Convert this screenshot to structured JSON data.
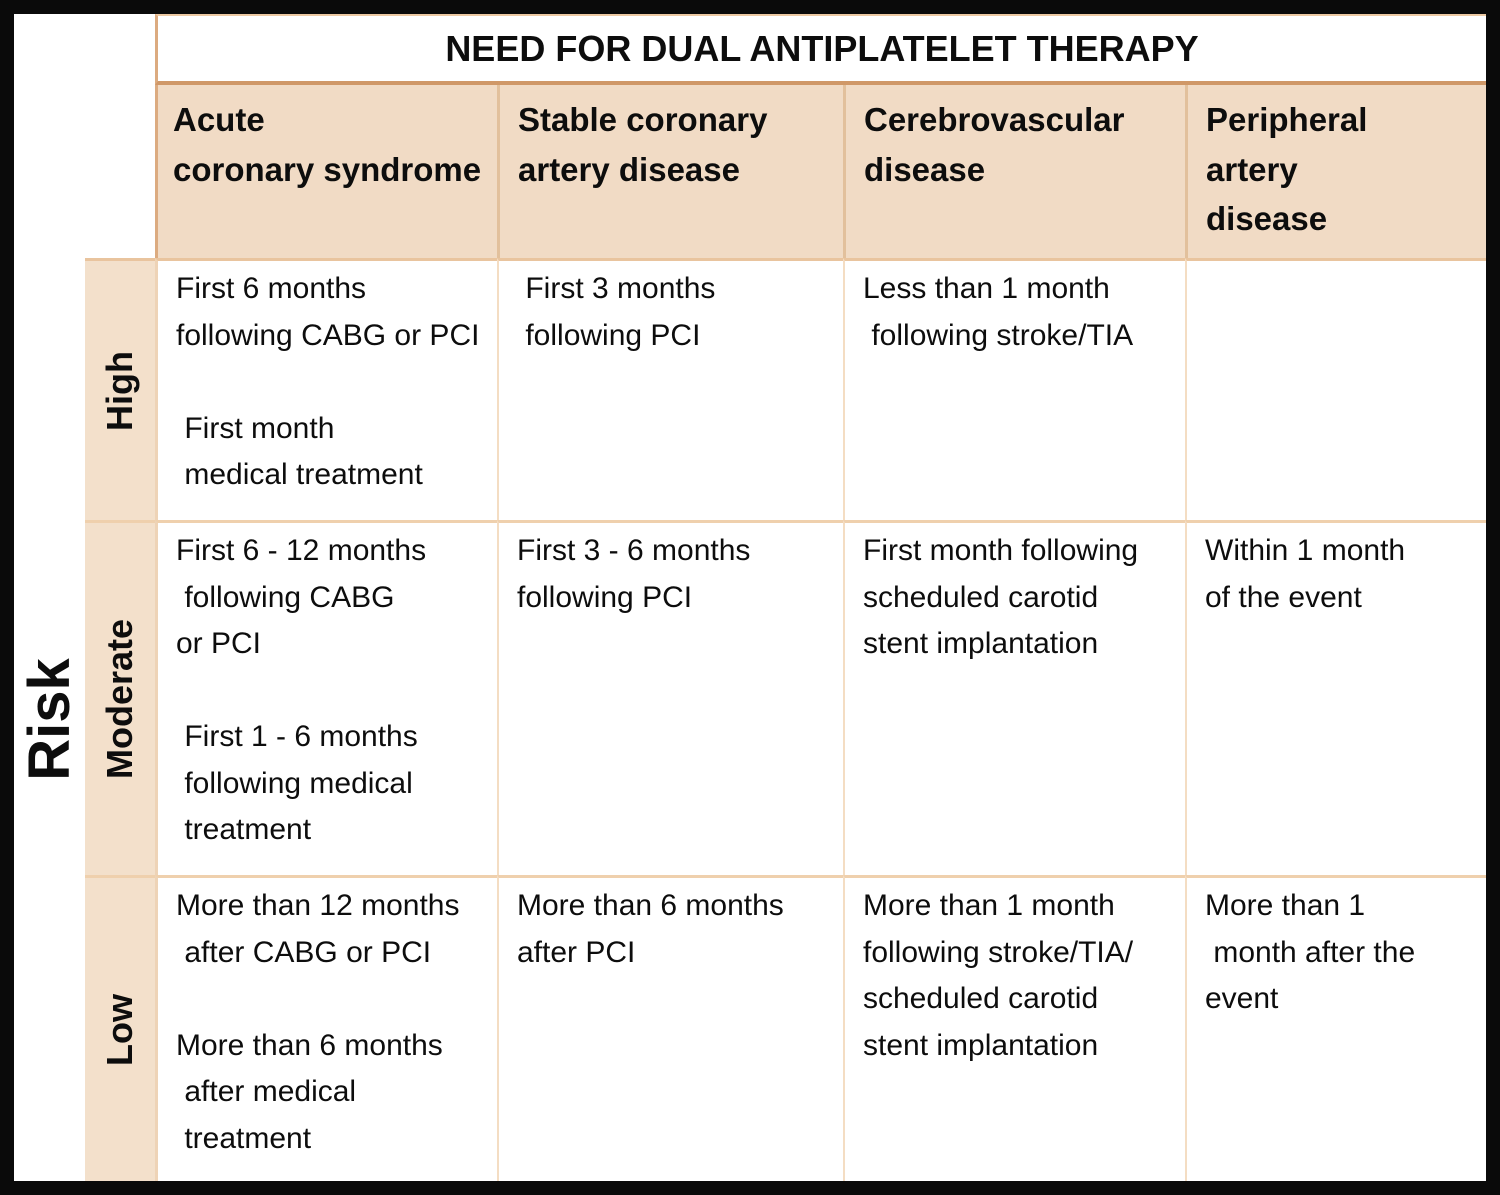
{
  "title": "NEED FOR DUAL ANTIPLATELET THERAPY",
  "risk_axis_label": "Risk",
  "columns": [
    "Acute\ncoronary syndrome",
    "Stable coronary\nartery disease",
    "Cerebrovascular\ndisease",
    "Peripheral\nartery\ndisease"
  ],
  "rows": [
    {
      "level": "High",
      "cells": [
        "First 6 months\nfollowing CABG or PCI\n\n First month\n medical treatment",
        " First 3 months\n following PCI",
        "Less than 1 month\n following stroke/TIA",
        ""
      ]
    },
    {
      "level": "Moderate",
      "cells": [
        "First 6 - 12 months\n following CABG\nor PCI\n\n First 1 - 6 months\n following medical\n treatment",
        "First 3 - 6 months\nfollowing PCI",
        "First month following\nscheduled carotid\nstent implantation",
        "Within 1 month\nof the event"
      ]
    },
    {
      "level": "Low",
      "cells": [
        "More than 12 months\n after CABG or PCI\n\nMore than 6 months\n after medical\n treatment",
        "More than 6 months\nafter PCI",
        "More than 1 month\nfollowing stroke/TIA/\nscheduled carotid\nstent implantation",
        "More than 1\n month after the\nevent"
      ]
    }
  ],
  "colors": {
    "outer_border": "#0a0a0a",
    "header_fill": "#f1dbc5",
    "row_label_fill": "#f3e0cb",
    "accent_line": "#d09868",
    "grid_line_light": "#efd0ad",
    "text": "#0d0d0d",
    "background": "#ffffff"
  }
}
